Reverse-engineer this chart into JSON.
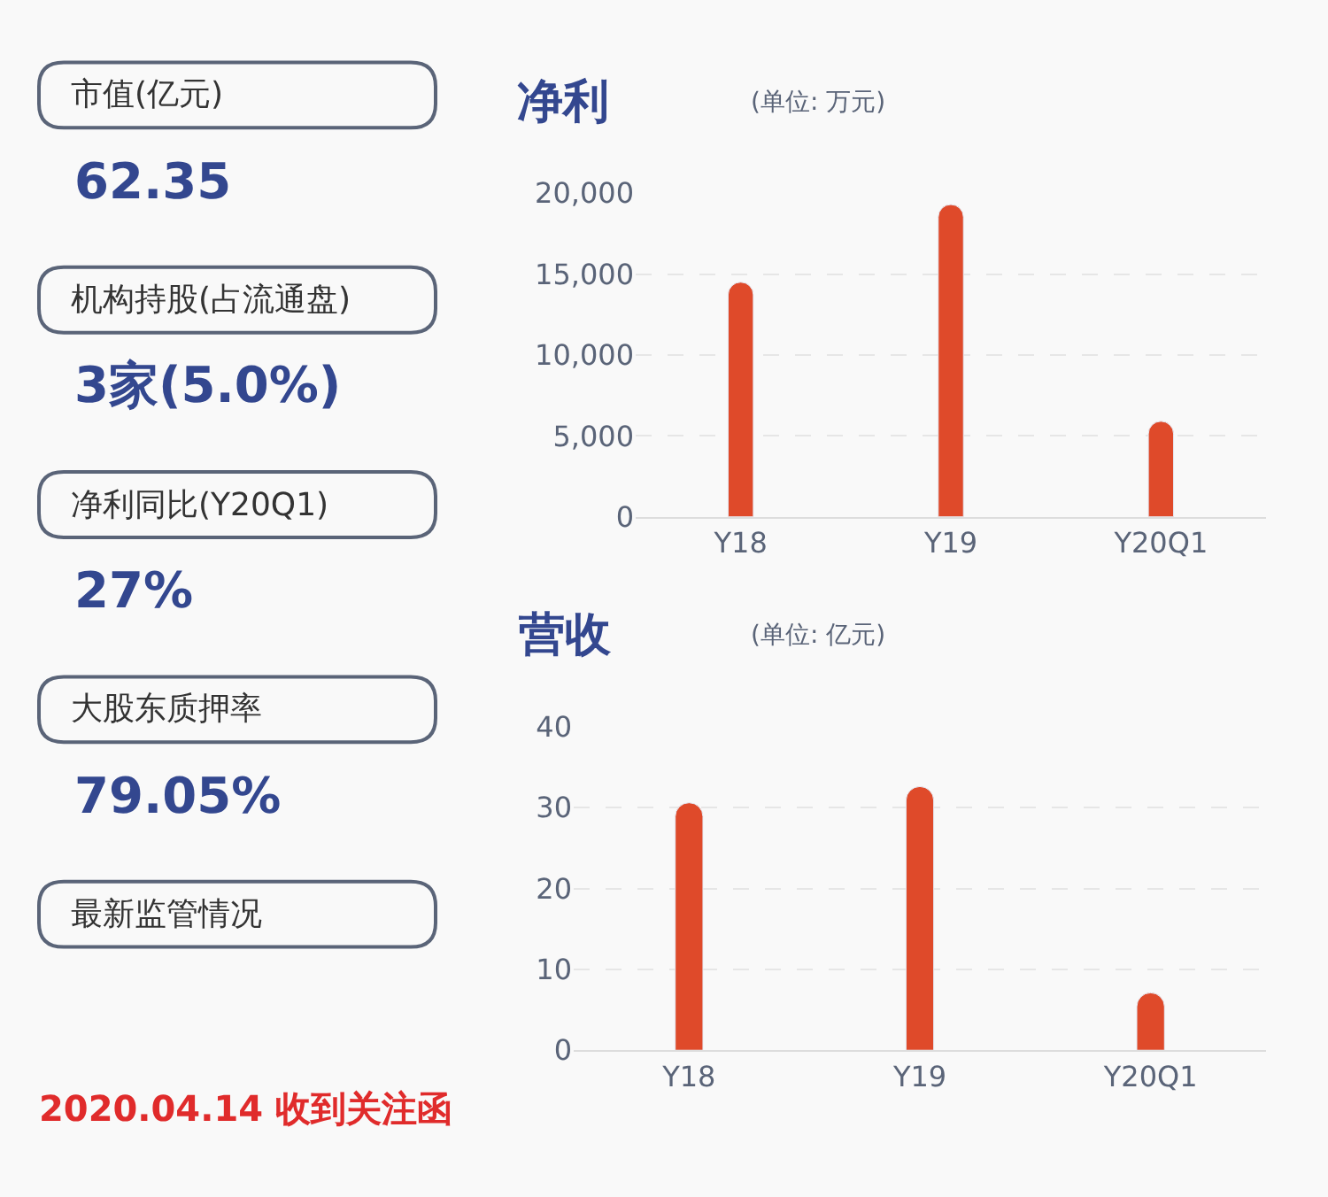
{
  "chart_data": [
    {
      "type": "other",
      "annotations": [
        "市值(亿元)",
        "62.35",
        "机构持股(占流通盘)",
        "3家(5.0%)",
        "净利同比(Y20Q1)",
        "27%",
        "大股东质押率",
        "79.05%",
        "最新监管情况",
        "2020.04.14 收到关注函"
      ]
    },
    {
      "type": "bar",
      "title": "净利",
      "subtitle": "(单位: 万元)",
      "categories": [
        "Y18",
        "Y19",
        "Y20Q1"
      ],
      "values": [
        14500,
        19300,
        5900
      ],
      "color": "#df4a2a",
      "ylim": [
        0,
        20000
      ],
      "yticks": [
        0,
        {
          "value": 5000,
          "label": "5,000"
        },
        {
          "value": 10000,
          "label": "10,000"
        },
        {
          "value": 15000,
          "label": "15,000"
        },
        {
          "value": 20000,
          "label": "20,000"
        }
      ],
      "grid": "y"
    },
    {
      "type": "bar",
      "title": "营收",
      "subtitle": "(单位: 亿元)",
      "categories": [
        "Y18",
        "Y19",
        "Y20Q1"
      ],
      "values": [
        30.6,
        32.6,
        7.1
      ],
      "color": "#df4a2a",
      "ylim": [
        0,
        40
      ],
      "yticks": [
        0,
        10,
        20,
        30,
        40
      ],
      "grid": "y"
    }
  ]
}
